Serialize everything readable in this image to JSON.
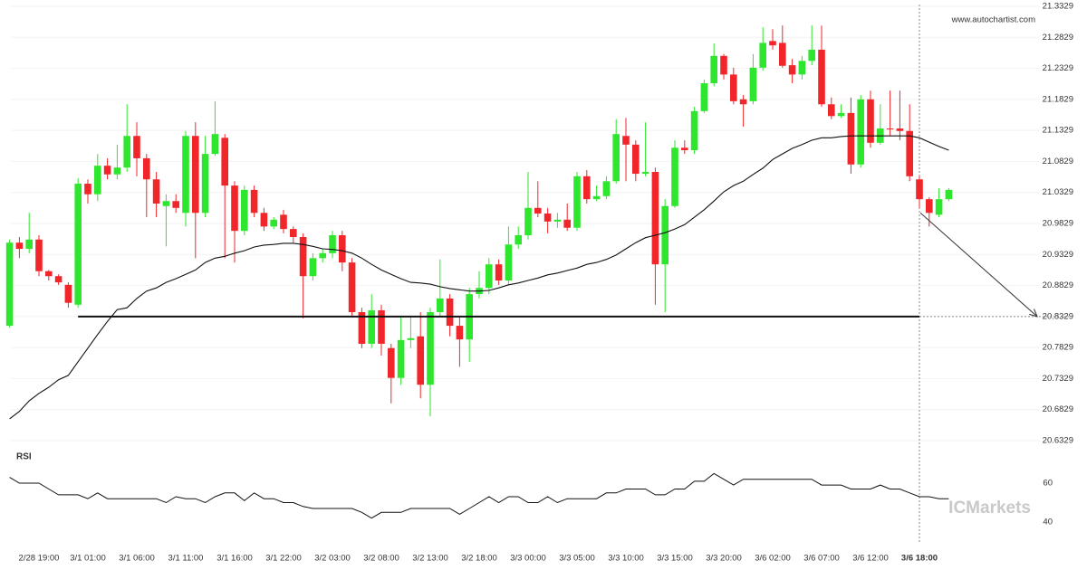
{
  "chart_data": {
    "type": "candlestick",
    "watermark": "www.autochartist.com",
    "brand": "ICMarkets",
    "categories": [
      null,
      null,
      null,
      "2/28 19:00",
      null,
      null,
      null,
      null,
      "3/1 01:00",
      null,
      null,
      null,
      null,
      "3/1 06:00",
      null,
      null,
      null,
      null,
      "3/1 11:00",
      null,
      null,
      null,
      null,
      "3/1 16:00",
      null,
      null,
      null,
      null,
      "3/1 22:00",
      null,
      null,
      null,
      null,
      "3/2 03:00",
      null,
      null,
      null,
      null,
      "3/2 08:00",
      null,
      null,
      null,
      null,
      "3/2 13:00",
      null,
      null,
      null,
      null,
      "3/2 18:00",
      null,
      null,
      null,
      null,
      "3/3 00:00",
      null,
      null,
      null,
      null,
      "3/3 05:00",
      null,
      null,
      null,
      null,
      "3/3 10:00",
      null,
      null,
      null,
      null,
      "3/3 15:00",
      null,
      null,
      null,
      null,
      "3/3 20:00",
      null,
      null,
      null,
      null,
      "3/6 02:00",
      null,
      null,
      null,
      null,
      "3/6 07:00",
      null,
      null,
      null,
      null,
      "3/6 12:00",
      null,
      null,
      null,
      null,
      "3/6 18:00",
      null,
      null,
      null
    ],
    "open": [
      20.818,
      20.952,
      20.942,
      20.957,
      20.906,
      20.898,
      20.884,
      20.852,
      21.047,
      21.03,
      21.076,
      21.062,
      21.073,
      21.124,
      21.088,
      21.054,
      21.011,
      21.019,
      21.0,
      21.124,
      21.0,
      21.095,
      21.121,
      21.044,
      20.971,
      21.037,
      21.0,
      20.978,
      20.997,
      20.974,
      20.961,
      20.898,
      20.927,
      20.935,
      20.964,
      20.92,
      20.84,
      20.789,
      20.843,
      20.782,
      20.734,
      20.795,
      20.801,
      20.723,
      20.84,
      20.862,
      20.818,
      20.796,
      20.869,
      20.879,
      20.917,
      20.891,
      20.949,
      20.964,
      21.008,
      20.999,
      20.986,
      20.989,
      20.976,
      21.059,
      21.022,
      21.027,
      21.051,
      21.124,
      21.11,
      21.063,
      21.066,
      20.917,
      21.011,
      21.105,
      21.101,
      21.164,
      21.209,
      21.253,
      21.223,
      21.183,
      21.18,
      21.234,
      21.277,
      21.274,
      21.238,
      21.223,
      21.245,
      21.263,
      21.175,
      21.156,
      21.161,
      21.078,
      21.183,
      21.113,
      21.136,
      21.136,
      21.132,
      21.054,
      21.022,
      20.997,
      21.022
    ],
    "high": [
      20.957,
      20.961,
      21.0,
      20.964,
      20.908,
      20.901,
      20.888,
      21.056,
      21.054,
      21.095,
      21.088,
      21.11,
      21.175,
      21.146,
      21.095,
      21.066,
      21.03,
      21.03,
      21.132,
      21.146,
      21.124,
      21.18,
      21.127,
      21.051,
      21.044,
      21.044,
      21.008,
      20.993,
      21.005,
      20.978,
      20.967,
      20.935,
      20.942,
      20.971,
      20.971,
      20.927,
      20.847,
      20.869,
      20.852,
      20.789,
      20.833,
      20.833,
      20.84,
      20.847,
      20.925,
      20.869,
      20.833,
      20.879,
      20.906,
      20.927,
      20.925,
      20.978,
      20.978,
      21.066,
      21.051,
      21.008,
      21.0,
      21.015,
      21.066,
      21.069,
      21.044,
      21.059,
      21.151,
      21.153,
      21.117,
      21.146,
      21.073,
      21.022,
      21.117,
      21.117,
      21.171,
      21.215,
      21.273,
      21.256,
      21.234,
      21.19,
      21.256,
      21.299,
      21.296,
      21.302,
      21.248,
      21.253,
      21.302,
      21.302,
      21.186,
      21.175,
      21.186,
      21.19,
      21.197,
      21.175,
      21.197,
      21.197,
      21.175,
      21.059,
      21.025,
      21.04,
      21.04
    ],
    "low": [
      20.815,
      20.927,
      20.935,
      20.898,
      20.891,
      20.884,
      20.847,
      20.847,
      21.015,
      21.019,
      21.054,
      21.054,
      21.066,
      21.059,
      20.993,
      20.993,
      20.946,
      21.0,
      20.978,
      20.927,
      20.993,
      21.092,
      20.927,
      20.92,
      20.964,
      20.993,
      20.971,
      20.974,
      20.967,
      20.952,
      20.83,
      20.891,
      20.92,
      20.927,
      20.906,
      20.833,
      20.782,
      20.782,
      20.77,
      20.693,
      20.723,
      20.782,
      20.701,
      20.672,
      20.833,
      20.801,
      20.752,
      20.76,
      20.862,
      20.869,
      20.884,
      20.884,
      20.942,
      20.957,
      20.993,
      20.967,
      20.976,
      20.971,
      20.971,
      21.015,
      21.019,
      21.022,
      21.047,
      21.051,
      21.051,
      21.059,
      20.852,
      20.84,
      21.008,
      21.095,
      21.095,
      21.161,
      21.204,
      21.215,
      21.175,
      21.139,
      21.175,
      21.229,
      21.263,
      21.234,
      21.209,
      21.215,
      21.238,
      21.171,
      21.151,
      21.153,
      21.063,
      21.073,
      21.105,
      21.11,
      21.124,
      21.117,
      21.051,
      21.008,
      20.978,
      20.993,
      21.019
    ],
    "close": [
      20.952,
      20.942,
      20.957,
      20.906,
      20.898,
      20.888,
      20.855,
      21.047,
      21.03,
      21.076,
      21.062,
      21.073,
      21.124,
      21.088,
      21.054,
      21.015,
      21.019,
      21.008,
      21.124,
      21.0,
      21.095,
      21.127,
      21.044,
      20.971,
      21.037,
      21.0,
      20.978,
      20.989,
      20.974,
      20.961,
      20.898,
      20.927,
      20.935,
      20.964,
      20.92,
      20.84,
      20.789,
      20.843,
      20.789,
      20.734,
      20.795,
      20.798,
      20.723,
      20.84,
      20.862,
      20.818,
      20.796,
      20.869,
      20.879,
      20.917,
      20.891,
      20.949,
      20.964,
      21.008,
      20.999,
      20.986,
      20.989,
      20.976,
      21.059,
      21.022,
      21.027,
      21.051,
      21.127,
      21.11,
      21.063,
      21.066,
      20.917,
      21.011,
      21.105,
      21.101,
      21.164,
      21.209,
      21.253,
      21.223,
      21.18,
      21.175,
      21.234,
      21.274,
      21.27,
      21.237,
      21.223,
      21.245,
      21.263,
      21.175,
      21.156,
      21.161,
      21.078,
      21.183,
      21.113,
      21.136,
      21.135,
      21.132,
      21.059,
      21.022,
      21.0,
      21.022,
      21.037
    ],
    "moving_average": [
      20.668,
      20.68,
      20.697,
      20.709,
      20.719,
      20.731,
      20.738,
      20.76,
      20.782,
      20.804,
      20.825,
      20.844,
      20.847,
      20.862,
      20.874,
      20.879,
      20.888,
      20.894,
      20.901,
      20.908,
      20.92,
      20.927,
      20.93,
      20.935,
      20.939,
      20.945,
      20.948,
      20.949,
      20.951,
      20.951,
      20.949,
      20.946,
      20.942,
      20.941,
      20.939,
      20.935,
      20.927,
      20.917,
      20.908,
      20.901,
      20.894,
      20.888,
      20.887,
      20.885,
      20.881,
      20.878,
      20.876,
      20.874,
      20.874,
      20.875,
      20.879,
      20.884,
      20.887,
      20.891,
      20.895,
      20.9,
      20.903,
      20.907,
      20.911,
      20.917,
      20.92,
      20.925,
      20.932,
      20.942,
      20.952,
      20.96,
      20.964,
      20.968,
      20.974,
      20.981,
      20.993,
      21.005,
      21.019,
      21.034,
      21.044,
      21.051,
      21.062,
      21.072,
      21.086,
      21.095,
      21.104,
      21.11,
      21.117,
      21.121,
      21.121,
      21.123,
      21.124,
      21.124,
      21.124,
      21.124,
      21.124,
      21.124,
      21.124,
      21.121,
      21.114,
      21.107,
      21.101
    ],
    "up_color": "#2ee62e",
    "down_color": "#f0262a",
    "ylim": [
      20.6329,
      21.3329
    ],
    "yticks": [
      21.3329,
      21.2829,
      21.2329,
      21.1829,
      21.1329,
      21.0829,
      21.0329,
      20.9829,
      20.9329,
      20.8829,
      20.8329,
      20.7829,
      20.7329,
      20.6829,
      20.6329
    ],
    "grid": true,
    "support_level": 20.8329,
    "rsi": {
      "label": "RSI",
      "ylim": [
        30,
        76
      ],
      "yticks": [
        60,
        40
      ],
      "values": [
        63,
        60,
        60,
        60,
        57,
        54,
        54,
        54,
        52,
        55,
        52,
        52,
        52,
        52,
        52,
        52,
        50,
        53,
        52,
        52,
        50,
        53,
        55,
        55,
        51,
        55,
        52,
        52,
        50,
        50,
        48,
        47,
        47,
        47,
        47,
        47,
        45,
        42,
        45,
        45,
        45,
        47,
        47,
        47,
        47,
        47,
        44,
        47,
        50,
        53,
        50,
        53,
        53,
        50,
        50,
        53,
        50,
        52,
        52,
        52,
        52,
        55,
        55,
        57,
        57,
        57,
        54,
        54,
        57,
        57,
        61,
        61,
        65,
        62,
        59,
        62,
        62,
        62,
        62,
        62,
        62,
        62,
        62,
        59,
        59,
        59,
        57,
        57,
        57,
        59,
        57,
        57,
        55,
        53,
        53,
        52,
        52
      ]
    }
  }
}
